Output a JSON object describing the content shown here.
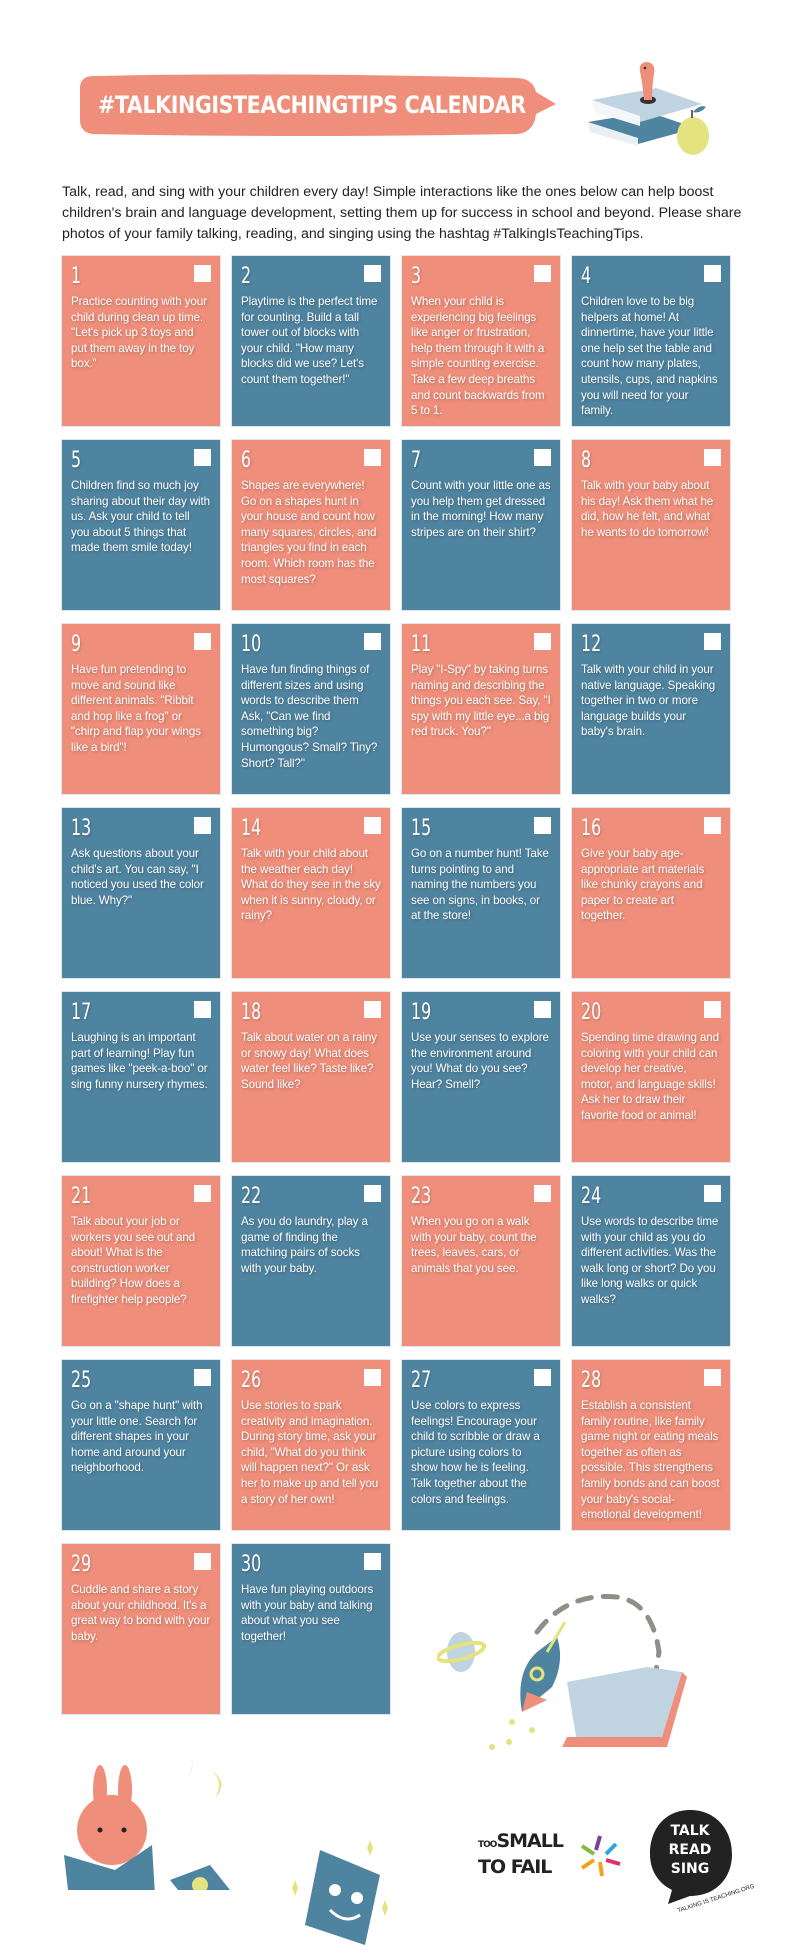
{
  "header": {
    "title": "#TALKINGISTEACHINGTIPS CALENDAR",
    "intro": "Talk, read, and sing with your children every day! Simple interactions like the ones below can help boost children's brain and language development, setting them up for success in school and beyond. Please share photos of your family talking, reading, and singing using the hashtag #TalkingIsTeachingTips."
  },
  "colors": {
    "coral": "#ef8f7b",
    "blue": "#4f84a0",
    "yellow": "#e8e47c",
    "light_blue": "#bfd3e0"
  },
  "days": [
    {
      "number": "1",
      "color": "coral",
      "text": "Practice counting with your child during clean up time. \"Let's pick up 3 toys and put them away in the toy box.\""
    },
    {
      "number": "2",
      "color": "blue",
      "text": "Playtime is the perfect time for counting. Build a tall tower out of blocks with your child. \"How many blocks did we use? Let's count them together!\""
    },
    {
      "number": "3",
      "color": "coral",
      "text": "When your child is experiencing big feelings like anger or frustration, help them through it with a simple counting exercise. Take a few deep breaths and count backwards from 5 to 1."
    },
    {
      "number": "4",
      "color": "blue",
      "text": "Children love to be big helpers at home! At dinnertime, have your little one help set the table and count how many plates, utensils, cups, and napkins you will need for your family."
    },
    {
      "number": "5",
      "color": "blue",
      "text": "Children find so much joy sharing about their day with us. Ask your child to tell you about 5 things that made them smile today!"
    },
    {
      "number": "6",
      "color": "coral",
      "text": "Shapes are everywhere! Go on a shapes hunt in your house and count how many squares, circles, and triangles you find in each room. Which room has the most squares?"
    },
    {
      "number": "7",
      "color": "blue",
      "text": "Count with your little one as you help them get dressed in the morning! How many stripes are on their shirt?"
    },
    {
      "number": "8",
      "color": "coral",
      "text": "Talk with your baby about his day! Ask them what he did, how he felt, and what he wants to do tomorrow!"
    },
    {
      "number": "9",
      "color": "coral",
      "text": "Have fun pretending to move and sound like different animals. \"Ribbit and hop like a frog\" or \"chirp and flap your wings like a bird\"!"
    },
    {
      "number": "10",
      "color": "blue",
      "text": "Have fun finding things of different sizes and using words to describe them Ask, \"Can we find something big? Humongous? Small? Tiny? Short? Tall?\""
    },
    {
      "number": "11",
      "color": "coral",
      "text": "Play \"I-Spy\" by taking turns naming and describing the things you each see. Say, \"I spy with my little eye...a big red truck. You?\""
    },
    {
      "number": "12",
      "color": "blue",
      "text": "Talk with your child in your native language. Speaking together in two or more language builds your baby's brain."
    },
    {
      "number": "13",
      "color": "blue",
      "text": "Ask questions about your child's art. You can say, \"I noticed you used the color blue. Why?\""
    },
    {
      "number": "14",
      "color": "coral",
      "text": "Talk with your child about the weather each day! What do they see in the sky when it is sunny, cloudy, or rainy?"
    },
    {
      "number": "15",
      "color": "blue",
      "text": "Go on a number hunt! Take turns pointing to and naming the numbers you see on signs, in books, or at the store!"
    },
    {
      "number": "16",
      "color": "coral",
      "text": "Give your baby age-appropriate art materials like chunky crayons and paper to create art together."
    },
    {
      "number": "17",
      "color": "blue",
      "text": "Laughing is an important part of learning! Play fun games like \"peek-a-boo\" or sing funny nursery rhymes."
    },
    {
      "number": "18",
      "color": "coral",
      "text": "Talk about water on a rainy or snowy day! What does water feel like? Taste like? Sound like?"
    },
    {
      "number": "19",
      "color": "blue",
      "text": "Use your senses to explore the environment around you! What do you see? Hear? Smell?"
    },
    {
      "number": "20",
      "color": "coral",
      "text": "Spending time drawing and coloring with your child can develop her creative, motor, and language skills! Ask her to draw their favorite food or animal!"
    },
    {
      "number": "21",
      "color": "coral",
      "text": "Talk about your job or workers you see out and about! What is the construction worker building? How does a firefighter help people?"
    },
    {
      "number": "22",
      "color": "blue",
      "text": "As you do laundry, play a game of finding the matching pairs of socks with your baby."
    },
    {
      "number": "23",
      "color": "coral",
      "text": "When you go on a walk with your baby, count the trees, leaves, cars, or animals that you see."
    },
    {
      "number": "24",
      "color": "blue",
      "text": "Use words to describe time with your child as you do different activities. Was the walk long or short? Do you like long walks or quick walks?"
    },
    {
      "number": "25",
      "color": "blue",
      "text": "Go on a \"shape hunt\" with your little one. Search for different shapes in your home and around your neighborhood."
    },
    {
      "number": "26",
      "color": "coral",
      "text": "Use stories to spark creativity and imagination. During story time, ask your child, \"What do you think will happen next?\" Or ask her to make up and tell you a story of her own!"
    },
    {
      "number": "27",
      "color": "blue",
      "text": "Use colors to express feelings! Encourage your child to scribble or draw a picture using colors to show how he is feeling. Talk together about the colors and feelings."
    },
    {
      "number": "28",
      "color": "coral",
      "text": "Establish a consistent family routine, like family game night or eating meals together as often as possible. This strengthens family bonds and can boost your baby's social-emotional development!"
    },
    {
      "number": "29",
      "color": "coral",
      "text": "Cuddle and share a story about your childhood. It's a great way to bond with your baby."
    },
    {
      "number": "30",
      "color": "blue",
      "text": "Have fun playing outdoors with your baby and talking about what you see together!"
    }
  ],
  "logos": {
    "too_small": {
      "line1_small": "TOO",
      "line1": "SMALL",
      "line2": "TO FAIL"
    },
    "talk_read_sing": {
      "words": [
        "TALK",
        "READ",
        "SING"
      ],
      "tagline": "TALKING IS TEACHING.ORG"
    }
  }
}
